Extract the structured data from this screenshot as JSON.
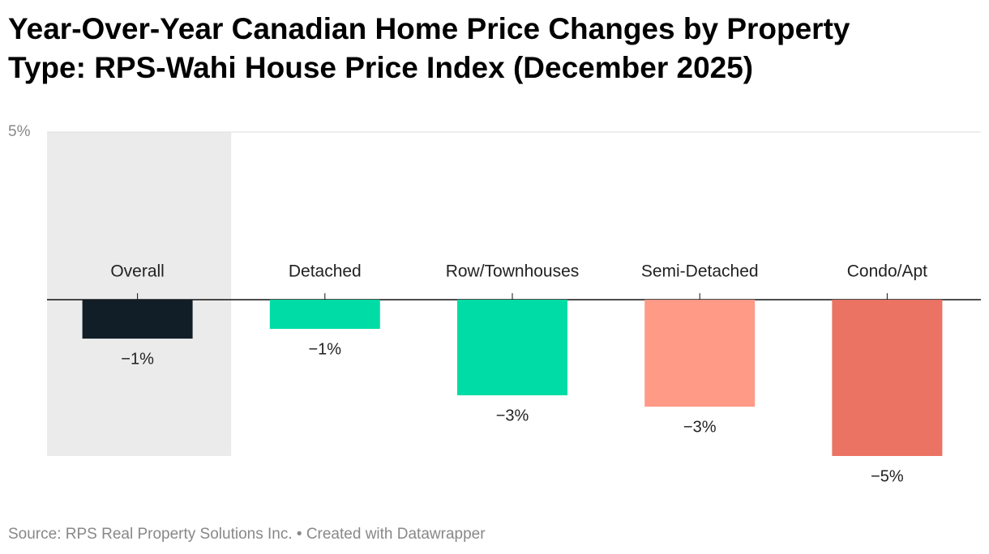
{
  "chart_data": {
    "type": "bar",
    "title": [
      "Year-Over-Year Canadian Home Price Changes by Property",
      "Type: RPS-Wahi House Price Index (December 2025)"
    ],
    "source": "Source: RPS Real Property Solutions Inc. • Created with Datawrapper",
    "categories": [
      "Overall",
      "Detached",
      "Row/Townhouses",
      "Semi-Detached",
      "Condo/Apt"
    ],
    "values": [
      -1.16,
      -0.87,
      -2.85,
      -3.19,
      -4.66
    ],
    "value_labels": [
      "−1%",
      "−1%",
      "−3%",
      "−3%",
      "−5%"
    ],
    "colors": [
      "#111e27",
      "#00dca5",
      "#00dca5",
      "#ff9a87",
      "#ea7363"
    ],
    "highlight_category": 0,
    "highlight_color": "#ebebeb",
    "ylim": [
      -4.66,
      5
    ],
    "yticks": [
      {
        "value": 5,
        "label": "5%"
      }
    ],
    "grid": true
  }
}
